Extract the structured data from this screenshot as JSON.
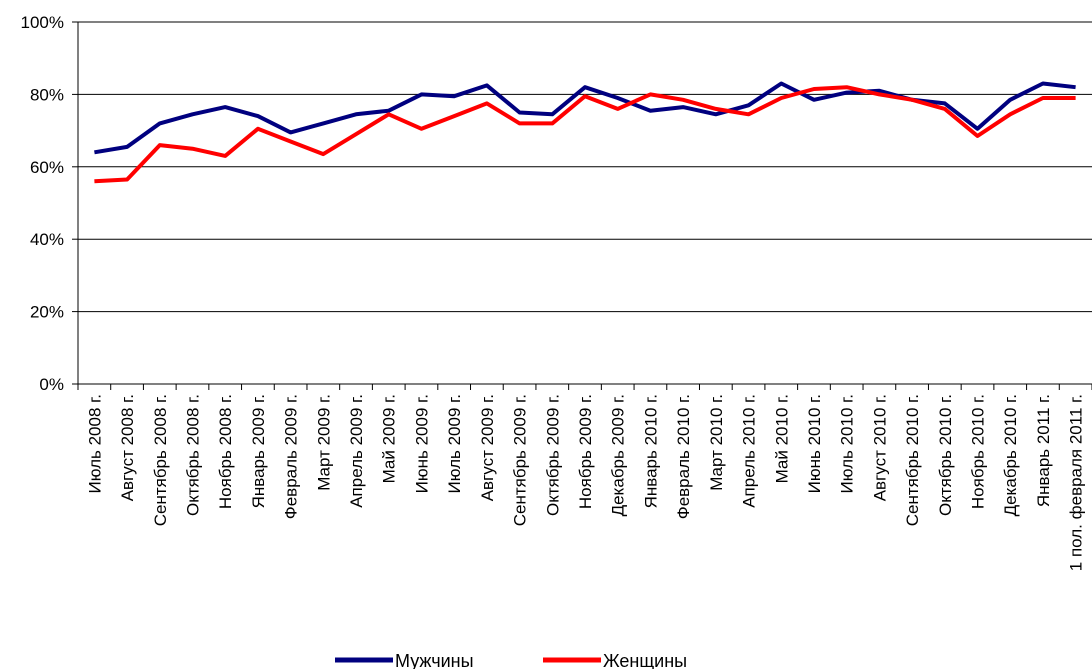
{
  "chart_data": {
    "type": "line",
    "title": "",
    "xlabel": "",
    "ylabel": "",
    "ylim": [
      0,
      100
    ],
    "y_tick_step": 20,
    "y_tick_suffix": "%",
    "grid": "horizontal",
    "legend_position": "bottom",
    "categories": [
      "Июль 2008 г.",
      "Август 2008 г.",
      "Сентябрь 2008 г.",
      "Октябрь 2008 г.",
      "Ноябрь 2008 г.",
      "Январь 2009 г.",
      "Февраль 2009 г.",
      "Март 2009 г.",
      "Апрель 2009 г.",
      "Май 2009 г.",
      "Июнь 2009 г.",
      "Июль 2009 г.",
      "Август 2009 г.",
      "Сентябрь 2009 г.",
      "Октябрь 2009 г.",
      "Ноябрь 2009 г.",
      "Декабрь 2009 г.",
      "Январь 2010 г.",
      "Февраль 2010 г.",
      "Март 2010 г.",
      "Апрель 2010 г.",
      "Май 2010 г.",
      "Июнь 2010 г.",
      "Июль 2010 г.",
      "Август 2010 г.",
      "Сентябрь 2010 г.",
      "Октябрь 2010 г.",
      "Ноябрь 2010 г.",
      "Декабрь 2010 г.",
      "Январь 2011 г.",
      "1 пол. февраля 2011 г."
    ],
    "series": [
      {
        "name": "Мужчины",
        "color": "#00007F",
        "values": [
          64,
          65.5,
          72,
          74.5,
          76.5,
          74,
          69.5,
          72,
          74.5,
          75.5,
          80,
          79.5,
          82.5,
          75,
          74.5,
          82,
          79,
          75.5,
          76.5,
          74.5,
          77,
          83,
          78.5,
          80.5,
          81,
          78.5,
          77.5,
          70.5,
          78.5,
          83,
          82
        ]
      },
      {
        "name": "Женщины",
        "color": "#FF0000",
        "values": [
          56,
          56.5,
          66,
          65,
          63,
          70.5,
          67,
          63.5,
          69,
          74.5,
          70.5,
          74,
          77.5,
          72,
          72,
          79.5,
          76,
          80,
          78.5,
          76,
          74.5,
          79,
          81.5,
          82,
          80,
          78.5,
          76,
          68.5,
          74.5,
          79,
          79
        ]
      }
    ]
  }
}
